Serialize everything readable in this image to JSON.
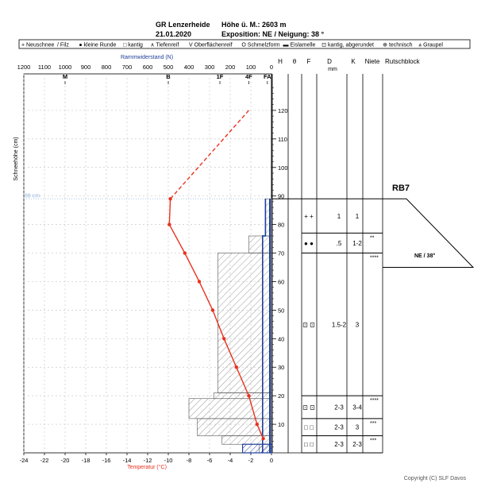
{
  "header": {
    "station": "GR Lenzerheide",
    "date": "21.01.2020",
    "altitude": "Höhe ü. M.: 2603 m",
    "exposition": "Exposition: NE / Neigung: 38 °"
  },
  "legend": [
    {
      "glyph": "+",
      "label": "Neuschnee"
    },
    {
      "glyph": "/",
      "label": "Filz"
    },
    {
      "glyph": "●",
      "label": "kleine Runde"
    },
    {
      "glyph": "□",
      "label": "kantig"
    },
    {
      "glyph": "∧",
      "label": "Tiefenreif"
    },
    {
      "glyph": "V",
      "label": "Oberflächenreif"
    },
    {
      "glyph": "O",
      "label": "Schmelzform"
    },
    {
      "glyph": "▬",
      "label": "Eislamelle"
    },
    {
      "glyph": "⊡",
      "label": "kantig, abgerundet"
    },
    {
      "glyph": "⊕",
      "label": "technisch"
    },
    {
      "glyph": "⩓",
      "label": "Graupel"
    }
  ],
  "colors": {
    "temperature": "#e8321e",
    "ram": "#1f3f9a",
    "ram_label": "#1f3f9a",
    "temp_label": "#e8321e",
    "hs_line": "#8fb4dc",
    "hatch": "#888888"
  },
  "labels": {
    "ram_axis": "Rammwiderstand (N)",
    "temp_axis": "Temperatur (°C)",
    "height_axis": "Schneehöhe (cm)",
    "hs_marker": "89 cm",
    "copyright": "Copyright (C) SLF Davos",
    "col_H": "H",
    "col_theta": "θ",
    "col_F": "F",
    "col_D": "D",
    "col_D_unit": "mm",
    "col_K": "K",
    "col_niete": "Niete",
    "col_rb": "Rutschblock",
    "rb_result": "RB7",
    "rb_slope": "NE / 38°"
  },
  "chart_data": {
    "type": "line",
    "title": "GR Lenzerheide 21.01.2020",
    "ram_ticks": [
      1200,
      1100,
      1000,
      900,
      800,
      700,
      600,
      500,
      400,
      300,
      200,
      100,
      0
    ],
    "hardness_labels": [
      {
        "label": "M",
        "value": 1000
      },
      {
        "label": "B",
        "value": 500
      },
      {
        "label": "1F",
        "value": 250
      },
      {
        "label": "4F",
        "value": 110
      },
      {
        "label": "FA",
        "value": 20
      }
    ],
    "temp_ticks": [
      -24,
      -22,
      -20,
      -18,
      -16,
      -14,
      -12,
      -10,
      -8,
      -6,
      -4,
      -2,
      0
    ],
    "height_ticks": [
      10,
      20,
      30,
      40,
      50,
      60,
      70,
      80,
      90,
      100,
      110,
      120
    ],
    "ylim": [
      0,
      130
    ],
    "xlim_temp": [
      -24,
      0
    ],
    "xlim_ram": [
      1200,
      0
    ],
    "snow_height": 89,
    "temperature_profile": {
      "name": "Temperatur",
      "points": [
        {
          "t": -9.8,
          "h": 89
        },
        {
          "t": -9.9,
          "h": 80
        },
        {
          "t": -8.4,
          "h": 70
        },
        {
          "t": -7.0,
          "h": 60
        },
        {
          "t": -5.7,
          "h": 50
        },
        {
          "t": -4.6,
          "h": 40
        },
        {
          "t": -3.4,
          "h": 30
        },
        {
          "t": -2.2,
          "h": 20
        },
        {
          "t": -1.4,
          "h": 10
        },
        {
          "t": -0.8,
          "h": 5
        }
      ],
      "air_temperature": {
        "t": -2.2,
        "h": 120
      }
    },
    "ram_profile": [
      {
        "h0": 0,
        "h1": 3,
        "r": 60
      },
      {
        "h0": 3,
        "h1": 6,
        "r": 240
      },
      {
        "h0": 6,
        "h1": 12,
        "r": 360
      },
      {
        "h0": 12,
        "h1": 19,
        "r": 400
      },
      {
        "h0": 19,
        "h1": 21,
        "r": 280
      },
      {
        "h0": 21,
        "h1": 70,
        "r": 260
      },
      {
        "h0": 70,
        "h1": 76,
        "r": 110
      },
      {
        "h0": 76,
        "h1": 89,
        "r": 30
      }
    ],
    "layers": [
      {
        "h_top": 89,
        "h_bot": 77,
        "form": "+ +",
        "D": "1",
        "K": "1",
        "niete": ""
      },
      {
        "h_top": 77,
        "h_bot": 70,
        "form": "● ●",
        "D": ".5",
        "K": "1-2",
        "niete": "**"
      },
      {
        "h_top": 70,
        "h_bot": 20,
        "form": "⊡ ⊡",
        "D": "1.5-2",
        "K": "3",
        "niete": "****"
      },
      {
        "h_top": 20,
        "h_bot": 12,
        "form": "⊡ ⊡",
        "D": "2-3",
        "K": "3-4",
        "niete": "****"
      },
      {
        "h_top": 12,
        "h_bot": 6,
        "form": "□ □",
        "D": "2-3",
        "K": "3",
        "niete": "***"
      },
      {
        "h_top": 6,
        "h_bot": 0,
        "form": "□ □",
        "D": "2-3",
        "K": "2-3",
        "niete": "***"
      }
    ],
    "rutschblock": {
      "result": "RB7",
      "aspect": "NE / 38°"
    }
  }
}
